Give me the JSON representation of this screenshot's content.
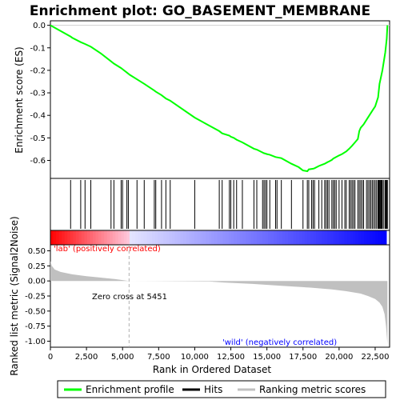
{
  "chart_data": {
    "type": "line",
    "title": "Enrichment plot: GO_BASEMENT_MEMBRANE",
    "xlabel": "Rank in Ordered Dataset",
    "ylabel_top": "Enrichment score (ES)",
    "ylabel_bottom": "Ranked list metric (Signal2Noise)",
    "xlim": [
      0,
      23500
    ],
    "x_ticks": [
      0,
      2500,
      5000,
      7500,
      10000,
      12500,
      15000,
      17500,
      20000,
      22500
    ],
    "x_tick_labels": [
      "0",
      "2,500",
      "5,000",
      "7,500",
      "10,000",
      "12,500",
      "15,000",
      "17,500",
      "20,000",
      "22,500"
    ],
    "es_ylim": [
      -0.68,
      0.02
    ],
    "es_ticks": [
      0.0,
      -0.1,
      -0.2,
      -0.3,
      -0.4,
      -0.5,
      -0.6
    ],
    "es_tick_labels": [
      "0.0",
      "-0.1",
      "-0.2",
      "-0.3",
      "-0.4",
      "-0.5",
      "-0.6"
    ],
    "metric_ylim": [
      -1.1,
      0.6
    ],
    "metric_ticks": [
      0.5,
      0.25,
      0.0,
      -0.25,
      -0.5,
      -0.75,
      -1.0
    ],
    "metric_tick_labels": [
      "0.50",
      "0.25",
      "0.00",
      "-0.25",
      "-0.50",
      "-0.75",
      "-1.00"
    ],
    "enrichment_profile": {
      "x": [
        0,
        1400,
        1500,
        2100,
        2400,
        2800,
        3500,
        4200,
        4400,
        4900,
        5000,
        5300,
        5500,
        6000,
        6500,
        7200,
        7300,
        7700,
        8000,
        8300,
        10000,
        11700,
        11900,
        12400,
        12500,
        12700,
        12900,
        13300,
        14100,
        14300,
        14700,
        14800,
        14900,
        15000,
        15200,
        15600,
        16000,
        16700,
        17200,
        17500,
        17800,
        17900,
        18200,
        18300,
        18600,
        18800,
        19000,
        19200,
        19300,
        19500,
        19600,
        19800,
        20000,
        20200,
        20500,
        20700,
        20900,
        21100,
        21300,
        21400,
        21500,
        21700,
        21900,
        22100,
        22300,
        22500,
        22700,
        22800,
        22900,
        23000,
        23100,
        23200,
        23300,
        23350
      ],
      "y": [
        0.0,
        -0.05,
        -0.055,
        -0.075,
        -0.083,
        -0.095,
        -0.125,
        -0.16,
        -0.17,
        -0.19,
        -0.195,
        -0.21,
        -0.22,
        -0.24,
        -0.26,
        -0.29,
        -0.295,
        -0.31,
        -0.325,
        -0.335,
        -0.41,
        -0.47,
        -0.48,
        -0.49,
        -0.495,
        -0.5,
        -0.508,
        -0.52,
        -0.548,
        -0.552,
        -0.565,
        -0.568,
        -0.57,
        -0.572,
        -0.575,
        -0.585,
        -0.59,
        -0.615,
        -0.63,
        -0.645,
        -0.648,
        -0.64,
        -0.637,
        -0.635,
        -0.625,
        -0.62,
        -0.615,
        -0.608,
        -0.605,
        -0.598,
        -0.592,
        -0.585,
        -0.578,
        -0.572,
        -0.56,
        -0.548,
        -0.535,
        -0.52,
        -0.505,
        -0.47,
        -0.455,
        -0.44,
        -0.42,
        -0.4,
        -0.38,
        -0.36,
        -0.32,
        -0.26,
        -0.23,
        -0.2,
        -0.16,
        -0.12,
        -0.06,
        0.0
      ]
    },
    "hits": [
      1400,
      2100,
      2400,
      2800,
      4200,
      4400,
      4900,
      5000,
      5300,
      5400,
      6000,
      6500,
      7200,
      7300,
      7700,
      8000,
      8300,
      10000,
      11700,
      11900,
      12400,
      12500,
      12700,
      12900,
      13300,
      14100,
      14300,
      14700,
      14800,
      14900,
      15000,
      15200,
      15600,
      15700,
      16000,
      16700,
      17500,
      17800,
      17900,
      18100,
      18200,
      18300,
      18600,
      18800,
      19000,
      19100,
      19200,
      19300,
      19500,
      19600,
      19700,
      19800,
      20000,
      20200,
      20400,
      20500,
      20700,
      20800,
      20900,
      21000,
      21100,
      21300,
      21400,
      21500,
      21600,
      21700,
      21900,
      22000,
      22100,
      22200,
      22300,
      22400,
      22500,
      22600,
      22700,
      22750,
      22800,
      22850,
      22900,
      22950,
      23000,
      23100,
      23200,
      23250,
      23300,
      23350
    ],
    "metric_curve": {
      "x": [
        0,
        100,
        300,
        700,
        1500,
        2500,
        3500,
        4500,
        5451,
        7000,
        9000,
        11000,
        12000,
        14000,
        16000,
        18000,
        19500,
        20500,
        21500,
        22000,
        22500,
        22800,
        23000,
        23150,
        23250,
        23350
      ],
      "y": [
        0.33,
        0.25,
        0.19,
        0.15,
        0.11,
        0.08,
        0.055,
        0.03,
        0.0,
        -0.003,
        -0.006,
        -0.01,
        -0.025,
        -0.05,
        -0.08,
        -0.11,
        -0.14,
        -0.17,
        -0.21,
        -0.25,
        -0.3,
        -0.36,
        -0.43,
        -0.55,
        -0.75,
        -1.05
      ]
    },
    "zero_cross_x": 5451,
    "zero_cross_label": "Zero cross at 5451",
    "pos_label": "'lab' (positively correlated)",
    "neg_label": "'wild' (negatively correlated)",
    "colors": {
      "profile": "#00ff00",
      "hits": "#000000",
      "metric_fill": "#c0c0c0",
      "pos_label": "#ff0000",
      "neg_label": "#0000ff",
      "zero_line": "#b0b0b0"
    },
    "legend": [
      {
        "label": "Enrichment profile",
        "color": "#00ff00",
        "style": "line"
      },
      {
        "label": "Hits",
        "color": "#000000",
        "style": "line"
      },
      {
        "label": "Ranking metric scores",
        "color": "#c0c0c0",
        "style": "line"
      }
    ]
  }
}
